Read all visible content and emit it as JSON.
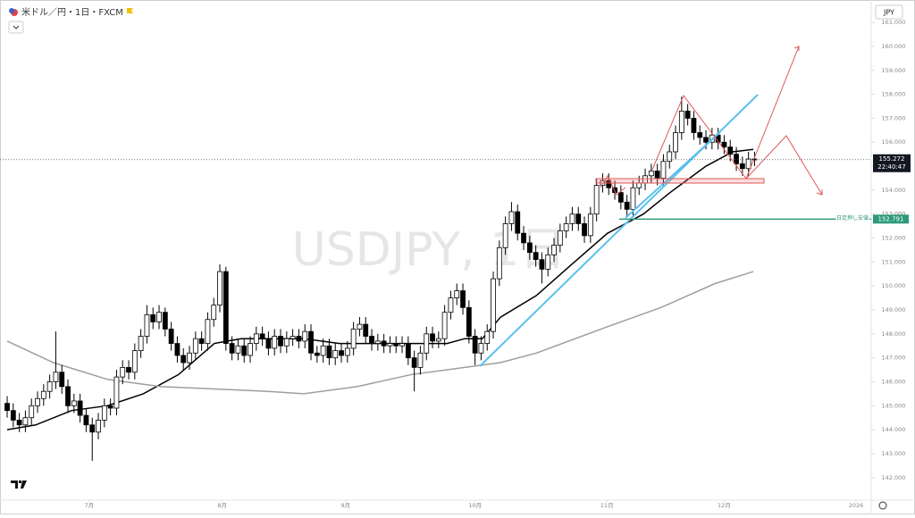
{
  "chart_data": {
    "type": "candlestick",
    "title": "米ドル／円・1日・FXCM",
    "currency": "JPY",
    "watermark": "USDJPY, 1日",
    "open": [
      145.1,
      144.8,
      144.4,
      144.2,
      144.5,
      145.0,
      145.3,
      145.6,
      146.0,
      146.4,
      145.8,
      145.0,
      145.2,
      144.6,
      144.2,
      143.9,
      144.4,
      145.0,
      144.9,
      146.2,
      146.6,
      146.4,
      147.3,
      147.9,
      148.8,
      148.5,
      148.9,
      148.2,
      147.6,
      147.1,
      146.8,
      147.2,
      147.8,
      147.6,
      148.6,
      149.2,
      150.6,
      147.6,
      147.2,
      147.5,
      147.1,
      147.6,
      148.0,
      147.8,
      147.4,
      147.9,
      147.5,
      147.8,
      147.9,
      147.7,
      148.1,
      147.2,
      147.1,
      147.5,
      147.0,
      147.3,
      147.1,
      147.4,
      148.2,
      148.4,
      147.9,
      147.6,
      147.7,
      147.5,
      147.6,
      147.5,
      147.6,
      147.0,
      146.6,
      147.2,
      148.0,
      147.7,
      147.8,
      148.9,
      149.5,
      149.8,
      149.1,
      147.9,
      147.2,
      147.6,
      148.1,
      150.3,
      151.6,
      152.6,
      153.1,
      152.2,
      151.8,
      151.4,
      151.1,
      150.7,
      151.3,
      151.7,
      152.3,
      152.6,
      153.0,
      152.6,
      152.1,
      153.0,
      154.2,
      154.4,
      154.1,
      153.9,
      153.5,
      153.2,
      154.1,
      154.3,
      154.6,
      154.8,
      154.5,
      155.2,
      155.6,
      156.4,
      157.3,
      157.0,
      156.4,
      156.2,
      156.0,
      156.3,
      156.0,
      155.8,
      155.5,
      155.1,
      154.9,
      155.3
    ],
    "high": [
      145.4,
      145.1,
      144.7,
      144.8,
      145.3,
      145.6,
      145.9,
      146.3,
      148.1,
      146.7,
      146.1,
      145.5,
      145.5,
      144.9,
      144.5,
      144.7,
      145.3,
      145.3,
      146.5,
      146.9,
      146.9,
      147.6,
      148.2,
      149.2,
      149.1,
      149.2,
      149.1,
      148.5,
      147.9,
      147.4,
      147.5,
      148.1,
      148.1,
      148.9,
      149.5,
      150.9,
      150.8,
      147.9,
      147.8,
      147.8,
      147.9,
      148.3,
      148.3,
      148.1,
      148.2,
      148.2,
      148.1,
      148.2,
      148.2,
      148.4,
      148.4,
      147.5,
      147.8,
      147.8,
      147.6,
      147.6,
      147.7,
      148.5,
      148.7,
      148.7,
      148.2,
      148.0,
      148.0,
      147.9,
      147.9,
      147.9,
      147.9,
      147.3,
      147.5,
      148.3,
      148.3,
      148.1,
      149.2,
      149.8,
      150.1,
      150.1,
      149.4,
      148.2,
      147.9,
      148.4,
      150.6,
      151.9,
      152.9,
      153.5,
      153.4,
      152.5,
      152.1,
      151.7,
      151.4,
      151.6,
      152.0,
      152.6,
      152.9,
      153.3,
      153.3,
      152.9,
      153.3,
      154.5,
      154.7,
      154.7,
      154.4,
      154.2,
      153.8,
      154.4,
      154.6,
      154.9,
      155.1,
      155.1,
      155.5,
      155.9,
      156.7,
      157.9,
      157.6,
      157.3,
      156.7,
      156.5,
      156.6,
      156.6,
      156.3,
      156.1,
      155.8,
      155.4,
      155.6,
      155.6
    ],
    "low": [
      144.5,
      144.1,
      143.9,
      143.9,
      144.2,
      144.7,
      145.0,
      145.3,
      145.7,
      145.5,
      144.7,
      144.7,
      144.3,
      143.9,
      142.7,
      143.6,
      144.1,
      144.6,
      144.6,
      145.9,
      146.1,
      146.1,
      147.0,
      147.6,
      148.2,
      148.2,
      147.9,
      147.3,
      146.8,
      146.5,
      146.5,
      146.9,
      147.3,
      147.3,
      148.3,
      148.9,
      147.3,
      146.9,
      146.9,
      146.8,
      146.8,
      147.3,
      147.5,
      147.1,
      147.1,
      147.2,
      147.2,
      147.5,
      147.4,
      147.4,
      146.9,
      146.8,
      146.8,
      146.7,
      146.7,
      146.8,
      146.8,
      147.1,
      147.9,
      147.6,
      147.3,
      147.3,
      147.2,
      147.2,
      147.2,
      147.2,
      146.7,
      145.6,
      146.3,
      146.9,
      147.4,
      147.4,
      147.5,
      148.6,
      149.2,
      148.8,
      147.6,
      146.7,
      146.9,
      147.3,
      147.8,
      150.0,
      151.3,
      152.3,
      151.9,
      151.5,
      151.1,
      150.8,
      150.1,
      150.4,
      151.0,
      151.4,
      152.0,
      152.3,
      152.3,
      151.8,
      151.8,
      152.7,
      153.9,
      153.8,
      153.6,
      153.2,
      152.9,
      152.9,
      153.8,
      154.0,
      154.3,
      154.2,
      154.2,
      154.9,
      155.3,
      156.1,
      156.7,
      156.1,
      155.9,
      155.7,
      155.7,
      155.7,
      155.5,
      155.2,
      154.8,
      154.6,
      154.6,
      155.0
    ],
    "close": [
      144.8,
      144.4,
      144.2,
      144.5,
      145.0,
      145.3,
      145.6,
      146.0,
      146.4,
      145.8,
      145.0,
      145.2,
      144.6,
      144.2,
      143.9,
      144.4,
      145.0,
      144.9,
      146.2,
      146.6,
      146.4,
      147.3,
      147.9,
      148.8,
      148.5,
      148.9,
      148.2,
      147.6,
      147.1,
      146.8,
      147.2,
      147.8,
      147.6,
      148.6,
      149.2,
      150.6,
      147.6,
      147.2,
      147.5,
      147.1,
      147.6,
      148.0,
      147.8,
      147.4,
      147.9,
      147.5,
      147.8,
      147.9,
      147.7,
      148.1,
      147.2,
      147.1,
      147.5,
      147.0,
      147.3,
      147.1,
      147.4,
      148.2,
      148.4,
      147.9,
      147.6,
      147.7,
      147.5,
      147.6,
      147.5,
      147.6,
      147.0,
      146.6,
      147.2,
      148.0,
      147.7,
      147.8,
      148.9,
      149.5,
      149.8,
      149.1,
      147.9,
      147.2,
      147.6,
      148.1,
      150.3,
      151.6,
      152.6,
      153.1,
      152.2,
      151.8,
      151.4,
      151.1,
      150.7,
      151.3,
      151.7,
      152.3,
      152.6,
      153.0,
      152.6,
      152.1,
      153.0,
      154.2,
      154.4,
      154.1,
      153.9,
      153.5,
      153.2,
      154.1,
      154.3,
      154.6,
      154.8,
      154.5,
      155.2,
      155.6,
      156.4,
      157.3,
      157.0,
      156.4,
      156.2,
      156.0,
      156.3,
      156.0,
      155.8,
      155.5,
      155.1,
      154.9,
      155.3,
      155.27
    ],
    "up_color": "#ffffff",
    "down_color": "#000000",
    "moving_averages": [
      {
        "color": "#000000",
        "x": [
          0,
          4.7,
          10.6,
          16.5,
          22.4,
          28.2,
          34.1,
          38.5,
          42.9,
          48.8,
          54.7,
          60.6,
          66.5,
          72.4,
          75.3,
          78.2,
          81.2,
          87.1,
          92.9,
          98.8,
          104.7,
          109.1,
          115,
          119.4,
          122.8
        ],
        "values": [
          144.0,
          144.2,
          144.8,
          145.0,
          145.5,
          146.3,
          147.6,
          147.8,
          147.8,
          147.8,
          147.6,
          147.6,
          147.6,
          147.6,
          147.8,
          147.8,
          148.7,
          149.6,
          150.9,
          152.2,
          153.0,
          153.9,
          155.0,
          155.6,
          155.7
        ]
      },
      {
        "color": "#9e9e9e",
        "x": [
          0,
          7.6,
          16.5,
          25.3,
          34.1,
          42.9,
          48.8,
          57.6,
          66.5,
          75.3,
          81.2,
          87.1,
          98.8,
          107.6,
          116.5,
          122.8
        ],
        "values": [
          147.7,
          146.8,
          146.1,
          145.8,
          145.7,
          145.6,
          145.5,
          145.8,
          146.3,
          146.6,
          146.8,
          147.2,
          148.3,
          149.1,
          150.1,
          150.6
        ]
      }
    ],
    "ylim": [
      141.06,
      161.75
    ],
    "yticks": [
      {
        "value": 142,
        "label": "142.000"
      },
      {
        "value": 143,
        "label": "143.000"
      },
      {
        "value": 144,
        "label": "144.000"
      },
      {
        "value": 145,
        "label": "145.000"
      },
      {
        "value": 146,
        "label": "146.000"
      },
      {
        "value": 147,
        "label": "147.000"
      },
      {
        "value": 148,
        "label": "148.000"
      },
      {
        "value": 149,
        "label": "149.000"
      },
      {
        "value": 150,
        "label": "150.000"
      },
      {
        "value": 151,
        "label": "151.000"
      },
      {
        "value": 152,
        "label": "152.000"
      },
      {
        "value": 153,
        "label": "153.000"
      },
      {
        "value": 154,
        "label": "154.000"
      },
      {
        "value": 155,
        "label": "155.000"
      },
      {
        "value": 156,
        "label": "156.000"
      },
      {
        "value": 157,
        "label": "157.000"
      },
      {
        "value": 158,
        "label": "158.000"
      },
      {
        "value": 159,
        "label": "159.000"
      },
      {
        "value": 160,
        "label": "160.000"
      },
      {
        "value": 161,
        "label": "161.000"
      }
    ],
    "xlim": [
      -1.18,
      142.2
    ],
    "xticks": [
      {
        "value": 13.5,
        "label": "7月"
      },
      {
        "value": 35.4,
        "label": "8月"
      },
      {
        "value": 55.7,
        "label": "9月"
      },
      {
        "value": 77,
        "label": "10月"
      },
      {
        "value": 98.7,
        "label": "11月"
      },
      {
        "value": 118,
        "label": "12月"
      },
      {
        "value": 139.7,
        "label": "2026"
      }
    ],
    "last_price": 155.272,
    "countdown": "22:40:47",
    "support": {
      "name": "日足押し安値",
      "value": 152.791
    }
  }
}
